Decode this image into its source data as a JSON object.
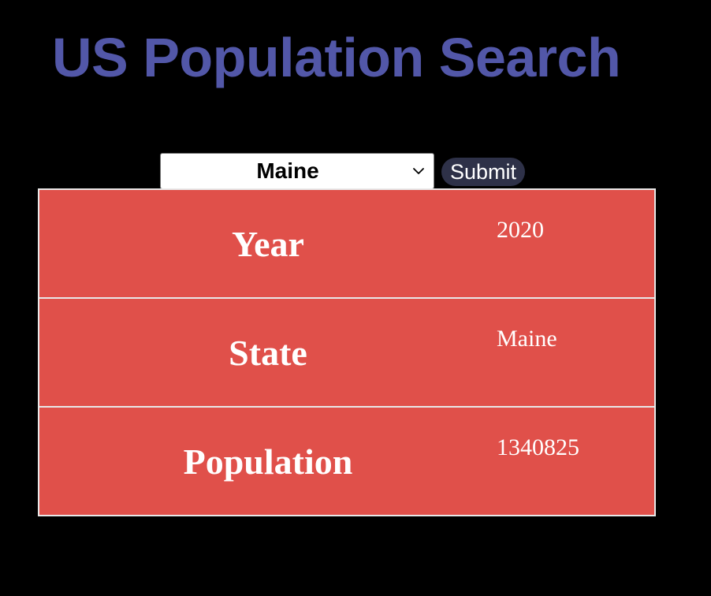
{
  "page": {
    "title": "US Population Search",
    "title_color": "#5257a8",
    "background": "#000000"
  },
  "form": {
    "selected_state": "Maine",
    "submit_label": "Submit"
  },
  "result": {
    "accent_color": "#e0504a",
    "rows": [
      {
        "label": "Year",
        "value": "2020"
      },
      {
        "label": "State",
        "value": "Maine"
      },
      {
        "label": "Population",
        "value": "1340825"
      }
    ]
  },
  "icons": {
    "select_arrow": "chevron-down-icon"
  }
}
